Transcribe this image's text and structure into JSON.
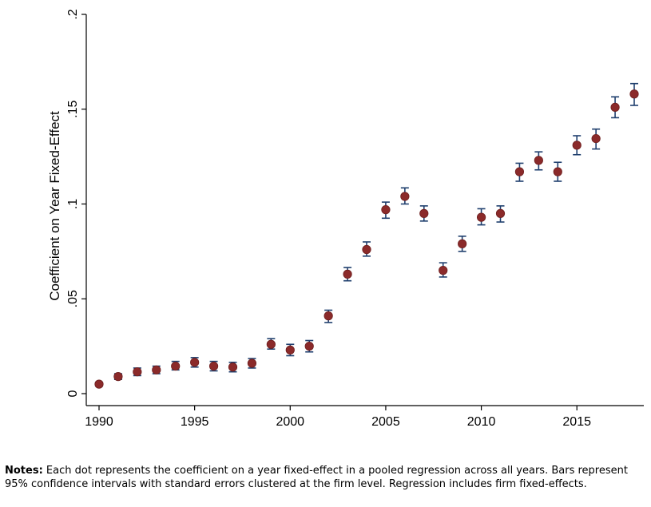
{
  "chart_data": {
    "type": "scatter",
    "title": "",
    "xlabel": "",
    "ylabel": "Coefficient on Year Fixed-Effect",
    "xlim": [
      1989.4,
      2018.8
    ],
    "ylim": [
      0,
      0.2
    ],
    "x_ticks": [
      1990,
      1995,
      2000,
      2005,
      2010,
      2015
    ],
    "x_tick_labels": [
      "1990",
      "1995",
      "2000",
      "2005",
      "2010",
      "2015"
    ],
    "y_ticks": [
      0,
      0.05,
      0.1,
      0.15,
      0.2
    ],
    "y_tick_labels": [
      "0",
      ".05",
      ".1",
      ".15",
      ".2"
    ],
    "grid": false,
    "legend": "none",
    "marker_color": "#8b2a2a",
    "errorbar_color": "#1f3f6e",
    "series": [
      {
        "points": [
          {
            "x": 1990,
            "y": 0.005,
            "lo": 0.004,
            "hi": 0.006
          },
          {
            "x": 1991,
            "y": 0.009,
            "lo": 0.0075,
            "hi": 0.0105
          },
          {
            "x": 1992,
            "y": 0.0115,
            "lo": 0.0095,
            "hi": 0.0135
          },
          {
            "x": 1993,
            "y": 0.0125,
            "lo": 0.0105,
            "hi": 0.0145
          },
          {
            "x": 1994,
            "y": 0.0145,
            "lo": 0.0125,
            "hi": 0.017
          },
          {
            "x": 1995,
            "y": 0.0165,
            "lo": 0.014,
            "hi": 0.019
          },
          {
            "x": 1996,
            "y": 0.0145,
            "lo": 0.012,
            "hi": 0.017
          },
          {
            "x": 1997,
            "y": 0.014,
            "lo": 0.0115,
            "hi": 0.0165
          },
          {
            "x": 1998,
            "y": 0.016,
            "lo": 0.0135,
            "hi": 0.0185
          },
          {
            "x": 1999,
            "y": 0.026,
            "lo": 0.0235,
            "hi": 0.029
          },
          {
            "x": 2000,
            "y": 0.023,
            "lo": 0.02,
            "hi": 0.026
          },
          {
            "x": 2001,
            "y": 0.025,
            "lo": 0.022,
            "hi": 0.028
          },
          {
            "x": 2002,
            "y": 0.041,
            "lo": 0.0375,
            "hi": 0.044
          },
          {
            "x": 2003,
            "y": 0.063,
            "lo": 0.0595,
            "hi": 0.0665
          },
          {
            "x": 2004,
            "y": 0.076,
            "lo": 0.0725,
            "hi": 0.08
          },
          {
            "x": 2005,
            "y": 0.097,
            "lo": 0.0925,
            "hi": 0.101
          },
          {
            "x": 2006,
            "y": 0.104,
            "lo": 0.1,
            "hi": 0.1085
          },
          {
            "x": 2007,
            "y": 0.095,
            "lo": 0.091,
            "hi": 0.099
          },
          {
            "x": 2008,
            "y": 0.065,
            "lo": 0.0615,
            "hi": 0.069
          },
          {
            "x": 2009,
            "y": 0.079,
            "lo": 0.075,
            "hi": 0.083
          },
          {
            "x": 2010,
            "y": 0.093,
            "lo": 0.089,
            "hi": 0.0975
          },
          {
            "x": 2011,
            "y": 0.095,
            "lo": 0.0905,
            "hi": 0.099
          },
          {
            "x": 2012,
            "y": 0.117,
            "lo": 0.112,
            "hi": 0.1215
          },
          {
            "x": 2013,
            "y": 0.123,
            "lo": 0.118,
            "hi": 0.1275
          },
          {
            "x": 2014,
            "y": 0.117,
            "lo": 0.112,
            "hi": 0.122
          },
          {
            "x": 2015,
            "y": 0.131,
            "lo": 0.126,
            "hi": 0.136
          },
          {
            "x": 2016,
            "y": 0.1345,
            "lo": 0.129,
            "hi": 0.1395
          },
          {
            "x": 2017,
            "y": 0.151,
            "lo": 0.1455,
            "hi": 0.1565
          },
          {
            "x": 2018,
            "y": 0.158,
            "lo": 0.152,
            "hi": 0.1635
          }
        ]
      }
    ]
  },
  "notes": {
    "label": "Notes:",
    "text": " Each dot represents the coefficient on a year fixed-effect in a pooled regression across all years. Bars represent 95% confidence intervals with standard errors clustered at the firm level. Regression includes firm fixed-effects."
  }
}
